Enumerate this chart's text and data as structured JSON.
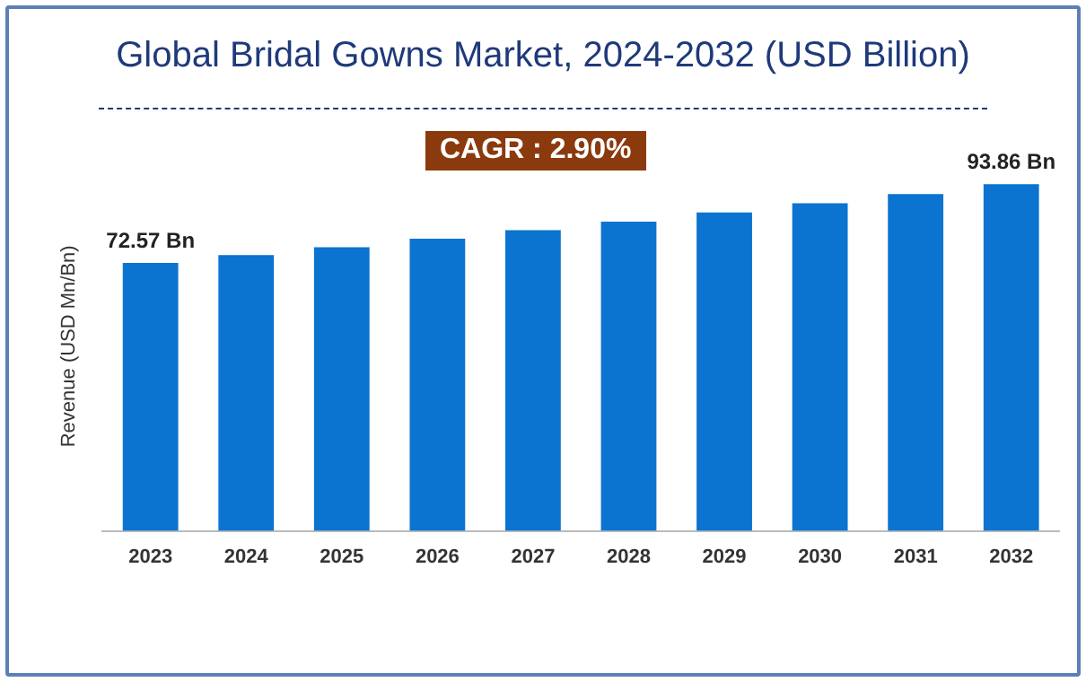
{
  "chart_data": {
    "type": "bar",
    "title": "Global Bridal Gowns Market, 2024-2032 (USD Billion)",
    "ylabel": "Revenue (USD Mn/Bn)",
    "annotations": [
      "CAGR : 2.90%"
    ],
    "categories": [
      "2023",
      "2024",
      "2025",
      "2026",
      "2027",
      "2028",
      "2029",
      "2030",
      "2031",
      "2032"
    ],
    "values": [
      72.57,
      74.7,
      76.8,
      79.1,
      81.4,
      83.7,
      86.2,
      88.7,
      91.2,
      93.86
    ],
    "value_labels": [
      "72.57 Bn",
      null,
      null,
      null,
      null,
      null,
      null,
      null,
      null,
      "93.86 Bn"
    ],
    "color": "#0a74d0",
    "grid": false,
    "legend": false
  }
}
